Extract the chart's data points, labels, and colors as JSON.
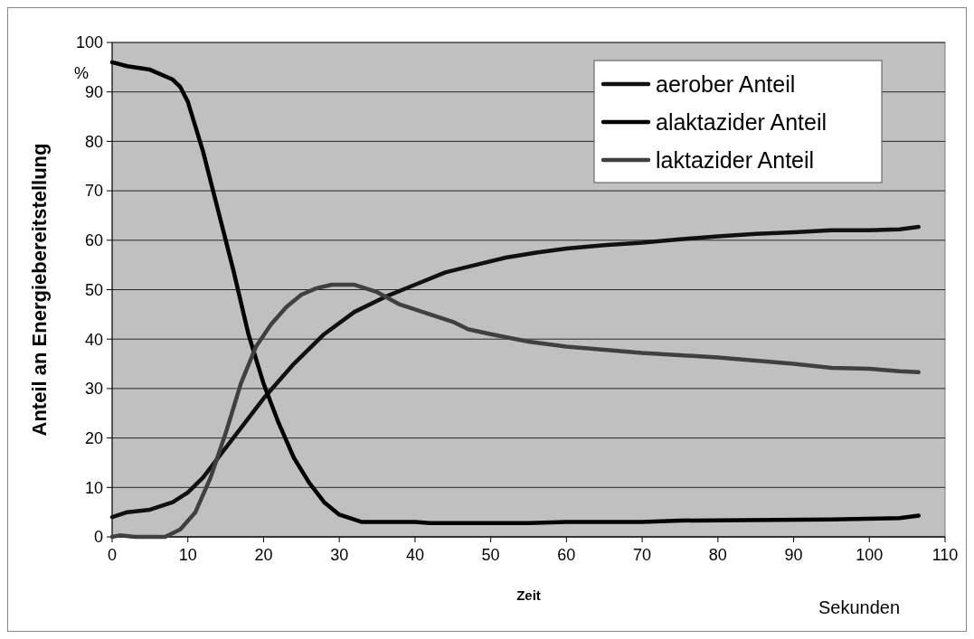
{
  "chart_data": {
    "type": "line",
    "xlabel": "Zeit",
    "ylabel": "Anteil an Energiebereitstellung",
    "annotations": [
      "%",
      "Sekunden"
    ],
    "xlim": [
      0,
      110
    ],
    "xticks": [
      0,
      10,
      20,
      30,
      40,
      50,
      60,
      70,
      80,
      90,
      100,
      110
    ],
    "ylim": [
      0,
      100
    ],
    "yticks": [
      0,
      10,
      20,
      30,
      40,
      50,
      60,
      70,
      80,
      90,
      100
    ],
    "grid": "y",
    "legend": "top right",
    "marker": "none",
    "line_style": "solid",
    "series": [
      {
        "name": "aerober Anteil",
        "color": "#111111",
        "x": [
          0,
          2,
          5,
          8,
          10,
          12,
          14,
          17,
          20,
          24,
          28,
          32,
          36,
          40,
          44,
          48,
          52,
          56,
          60,
          65,
          70,
          75,
          80,
          85,
          90,
          95,
          100,
          104,
          106.5
        ],
        "values": [
          4,
          5,
          5.5,
          7,
          9,
          12,
          16,
          22,
          28,
          35,
          41,
          45.5,
          48.5,
          51,
          53.5,
          55,
          56.5,
          57.5,
          58.3,
          59,
          59.5,
          60.2,
          60.8,
          61.3,
          61.6,
          62,
          62,
          62.2,
          62.7
        ]
      },
      {
        "name": "alaktazider Anteil",
        "color": "#000000",
        "x": [
          0,
          2,
          5,
          8,
          9,
          10,
          12,
          14,
          16,
          18,
          20,
          22,
          24,
          26,
          28,
          30,
          33,
          40,
          42,
          55,
          60,
          70,
          75,
          95,
          104,
          106.5
        ],
        "values": [
          96,
          95.2,
          94.5,
          92.5,
          91,
          88,
          78,
          66,
          54,
          41,
          31,
          23,
          16,
          11,
          7,
          4.5,
          3,
          3,
          2.8,
          2.8,
          3,
          3,
          3.3,
          3.5,
          3.8,
          4.3
        ]
      },
      {
        "name": "laktazider Anteil",
        "color": "#404040",
        "x": [
          0,
          1,
          3,
          7,
          9,
          11,
          13,
          15,
          17,
          19,
          21,
          23,
          25,
          27,
          29,
          32,
          35,
          38,
          40,
          45,
          47,
          50,
          55,
          60,
          70,
          80,
          90,
          95,
          100,
          104,
          106.5
        ],
        "values": [
          0,
          0.3,
          0,
          0,
          1.5,
          5,
          12,
          21,
          31,
          38.5,
          43,
          46.5,
          49,
          50.3,
          51,
          51,
          49.5,
          47,
          46,
          43.5,
          42,
          41,
          39.5,
          38.5,
          37.2,
          36.3,
          35,
          34.2,
          34,
          33.5,
          33.3
        ]
      }
    ]
  }
}
